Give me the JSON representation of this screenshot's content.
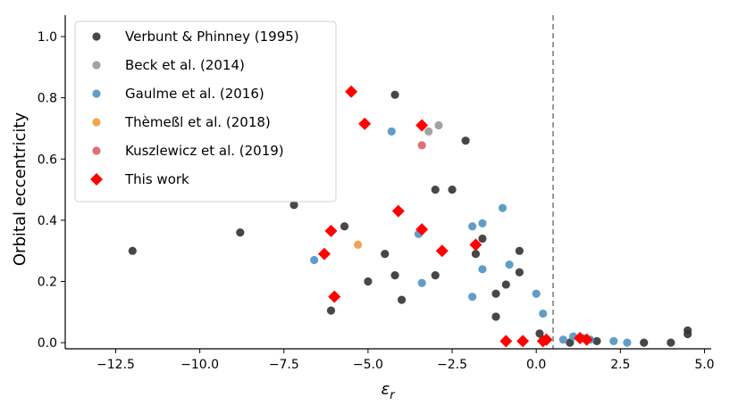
{
  "chart_data": {
    "type": "scatter",
    "title": "",
    "xlabel": "ε_r",
    "ylabel": "Orbital eccentricity",
    "xlim": [
      -14.0,
      5.2
    ],
    "ylim": [
      -0.02,
      1.07
    ],
    "xticks": [
      -12.5,
      -10.0,
      -7.5,
      -5.0,
      -2.5,
      0.0,
      2.5,
      5.0
    ],
    "xtick_labels": [
      "−12.5",
      "−10.0",
      "−7.5",
      "−5.0",
      "−2.5",
      "0.0",
      "2.5",
      "5.0"
    ],
    "yticks": [
      0.0,
      0.2,
      0.4,
      0.6,
      0.8,
      1.0
    ],
    "ytick_labels": [
      "0.0",
      "0.2",
      "0.4",
      "0.6",
      "0.8",
      "1.0"
    ],
    "vline": {
      "x": 0.5,
      "style": "dashed",
      "color": "#808080"
    },
    "legend_position": "top-left",
    "grid": false,
    "series": [
      {
        "name": "Verbunt & Phinney (1995)",
        "color": "#333333",
        "marker": "circle",
        "points": [
          [
            -12.0,
            0.3
          ],
          [
            -8.8,
            0.36
          ],
          [
            -7.2,
            0.45
          ],
          [
            -6.1,
            0.105
          ],
          [
            -5.7,
            0.38
          ],
          [
            -5.0,
            0.2
          ],
          [
            -4.5,
            0.29
          ],
          [
            -4.2,
            0.81
          ],
          [
            -4.2,
            0.22
          ],
          [
            -4.0,
            0.14
          ],
          [
            -3.0,
            0.5
          ],
          [
            -3.0,
            0.22
          ],
          [
            -2.5,
            0.5
          ],
          [
            -2.1,
            0.66
          ],
          [
            -1.8,
            0.29
          ],
          [
            -1.6,
            0.34
          ],
          [
            -1.2,
            0.16
          ],
          [
            -1.2,
            0.085
          ],
          [
            -0.9,
            0.19
          ],
          [
            -0.5,
            0.3
          ],
          [
            -0.5,
            0.23
          ],
          [
            0.1,
            0.03
          ],
          [
            0.3,
            0.01
          ],
          [
            0.2,
            0.01
          ],
          [
            1.0,
            0.0
          ],
          [
            1.5,
            0.01
          ],
          [
            1.8,
            0.005
          ],
          [
            3.2,
            0.0
          ],
          [
            4.0,
            0.0
          ],
          [
            4.5,
            0.04
          ],
          [
            4.5,
            0.028
          ]
        ]
      },
      {
        "name": "Beck et al. (2014)",
        "color": "#999999",
        "marker": "circle",
        "points": [
          [
            -3.2,
            0.69
          ],
          [
            -2.9,
            0.71
          ]
        ]
      },
      {
        "name": "Gaulme et al. (2016)",
        "color": "#4f93c3",
        "marker": "circle",
        "points": [
          [
            -6.6,
            0.27
          ],
          [
            -4.3,
            0.69
          ],
          [
            -3.5,
            0.355
          ],
          [
            -3.4,
            0.195
          ],
          [
            -1.9,
            0.38
          ],
          [
            -1.9,
            0.15
          ],
          [
            -1.6,
            0.39
          ],
          [
            -1.6,
            0.24
          ],
          [
            -1.0,
            0.44
          ],
          [
            -0.8,
            0.255
          ],
          [
            0.0,
            0.16
          ],
          [
            0.2,
            0.095
          ],
          [
            0.8,
            0.01
          ],
          [
            1.1,
            0.02
          ],
          [
            1.4,
            0.015
          ],
          [
            1.6,
            0.01
          ],
          [
            2.3,
            0.005
          ],
          [
            2.7,
            0.0
          ]
        ]
      },
      {
        "name": "Thèmeßl et al. (2018)",
        "color": "#f19a3e",
        "marker": "circle",
        "points": [
          [
            -5.3,
            0.32
          ]
        ]
      },
      {
        "name": "Kuszlewicz et al. (2019)",
        "color": "#d9606a",
        "marker": "circle",
        "points": [
          [
            -3.4,
            0.645
          ]
        ]
      },
      {
        "name": "This work",
        "color": "#ff0000",
        "marker": "diamond",
        "points": [
          [
            -5.5,
            0.82
          ],
          [
            -5.1,
            0.715
          ],
          [
            -3.4,
            0.71
          ],
          [
            -4.1,
            0.43
          ],
          [
            -3.4,
            0.37
          ],
          [
            -6.1,
            0.365
          ],
          [
            -6.3,
            0.29
          ],
          [
            -6.0,
            0.15
          ],
          [
            -2.8,
            0.3
          ],
          [
            -1.8,
            0.32
          ],
          [
            -0.9,
            0.005
          ],
          [
            -0.4,
            0.005
          ],
          [
            0.2,
            0.005
          ],
          [
            0.3,
            0.01
          ],
          [
            1.3,
            0.015
          ],
          [
            1.5,
            0.01
          ]
        ]
      }
    ]
  }
}
